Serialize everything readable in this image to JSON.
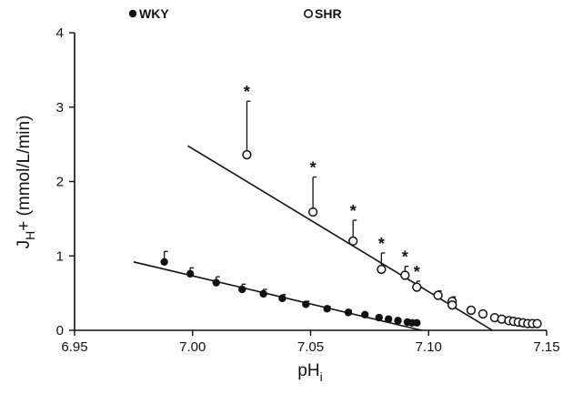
{
  "chart_data": {
    "type": "scatter",
    "xlabel": "pH",
    "xlabel_sub": "i",
    "ylabel_main": "J",
    "ylabel_sub": "H",
    "ylabel_rest": "+ (mmol/L/min)",
    "xlim": [
      6.95,
      7.15
    ],
    "ylim": [
      0,
      4
    ],
    "x_ticks": [
      {
        "value": 6.95,
        "label": "6.95"
      },
      {
        "value": 7.0,
        "label": "7.00"
      },
      {
        "value": 7.05,
        "label": "7.05"
      },
      {
        "value": 7.1,
        "label": "7.10"
      },
      {
        "value": 7.15,
        "label": "7.15"
      }
    ],
    "y_ticks": [
      {
        "value": 0,
        "label": "0"
      },
      {
        "value": 1,
        "label": "1"
      },
      {
        "value": 2,
        "label": "2"
      },
      {
        "value": 3,
        "label": "3"
      },
      {
        "value": 4,
        "label": "4"
      }
    ],
    "grid": false,
    "legend_position": "top",
    "series": [
      {
        "name": "WKY",
        "marker": "filled-circle",
        "points": [
          {
            "x": 6.988,
            "y": 0.92,
            "err": 0.14
          },
          {
            "x": 6.999,
            "y": 0.76,
            "err": 0.08
          },
          {
            "x": 7.01,
            "y": 0.64,
            "err": 0.08
          },
          {
            "x": 7.021,
            "y": 0.55,
            "err": 0.07
          },
          {
            "x": 7.03,
            "y": 0.49,
            "err": 0.06
          },
          {
            "x": 7.038,
            "y": 0.43,
            "err": 0.05
          },
          {
            "x": 7.048,
            "y": 0.35,
            "err": 0.04
          },
          {
            "x": 7.057,
            "y": 0.29,
            "err": 0.03
          },
          {
            "x": 7.066,
            "y": 0.24,
            "err": 0.03
          },
          {
            "x": 7.073,
            "y": 0.21,
            "err": 0.02
          },
          {
            "x": 7.079,
            "y": 0.17,
            "err": 0.02
          },
          {
            "x": 7.083,
            "y": 0.15,
            "err": 0.02
          },
          {
            "x": 7.087,
            "y": 0.13,
            "err": 0.02
          },
          {
            "x": 7.091,
            "y": 0.11,
            "err": 0.0
          },
          {
            "x": 7.093,
            "y": 0.1,
            "err": 0.0
          },
          {
            "x": 7.095,
            "y": 0.1,
            "err": 0.0
          }
        ],
        "fit_line": [
          [
            6.975,
            0.92
          ],
          [
            7.097,
            0.0
          ]
        ]
      },
      {
        "name": "SHR",
        "marker": "open-circle",
        "points": [
          {
            "x": 7.023,
            "y": 2.36,
            "err": 0.72,
            "star": true
          },
          {
            "x": 7.051,
            "y": 1.59,
            "err": 0.47,
            "star": true
          },
          {
            "x": 7.068,
            "y": 1.2,
            "err": 0.28,
            "star": true
          },
          {
            "x": 7.08,
            "y": 0.82,
            "err": 0.22,
            "star": true
          },
          {
            "x": 7.09,
            "y": 0.74,
            "err": 0.12,
            "star": true
          },
          {
            "x": 7.095,
            "y": 0.58,
            "err": 0.08,
            "star": true
          },
          {
            "x": 7.104,
            "y": 0.47,
            "err": 0.06
          },
          {
            "x": 7.11,
            "y": 0.39,
            "err": 0.06
          },
          {
            "x": 7.11,
            "y": 0.34,
            "err": 0.0
          },
          {
            "x": 7.118,
            "y": 0.27,
            "err": 0.0
          },
          {
            "x": 7.123,
            "y": 0.22,
            "err": 0.0
          },
          {
            "x": 7.128,
            "y": 0.17,
            "err": 0.0
          },
          {
            "x": 7.131,
            "y": 0.15,
            "err": 0.0
          },
          {
            "x": 7.134,
            "y": 0.13,
            "err": 0.0
          },
          {
            "x": 7.136,
            "y": 0.12,
            "err": 0.0
          },
          {
            "x": 7.138,
            "y": 0.11,
            "err": 0.0
          },
          {
            "x": 7.14,
            "y": 0.1,
            "err": 0.0
          },
          {
            "x": 7.142,
            "y": 0.09,
            "err": 0.0
          },
          {
            "x": 7.144,
            "y": 0.09,
            "err": 0.0
          },
          {
            "x": 7.146,
            "y": 0.09,
            "err": 0.0
          }
        ],
        "fit_line": [
          [
            6.998,
            2.48
          ],
          [
            7.127,
            0.0
          ]
        ]
      }
    ],
    "annotation_symbol": "*"
  }
}
